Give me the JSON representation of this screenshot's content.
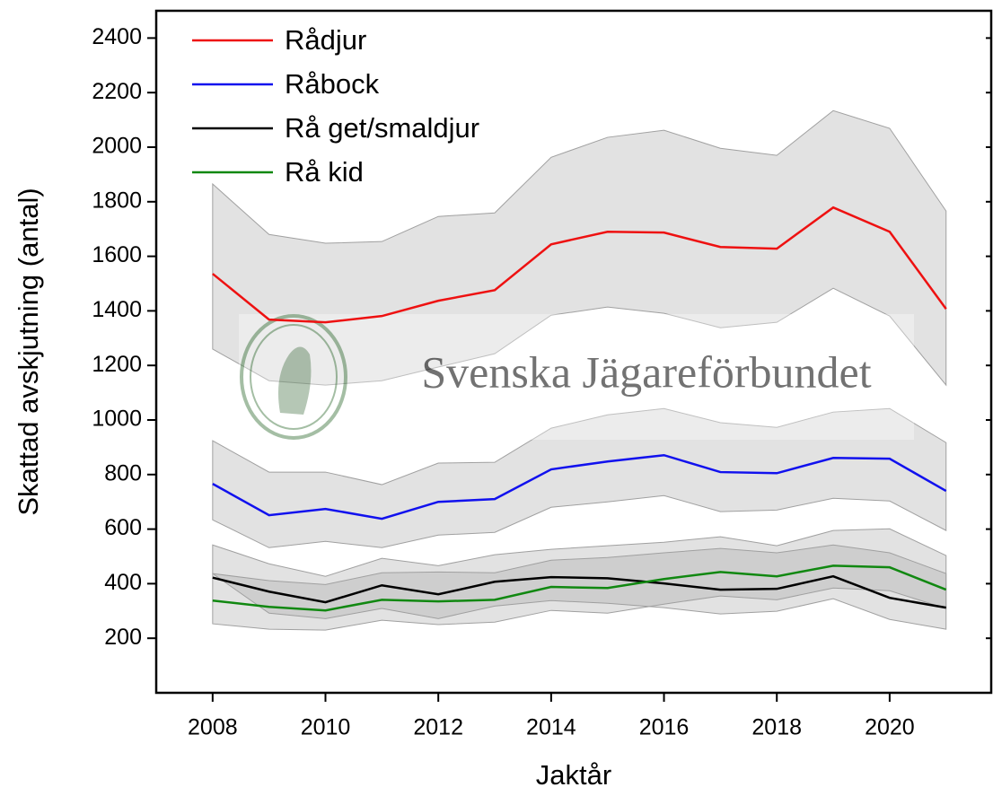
{
  "chart_data": {
    "type": "line",
    "x_label": "Jaktår",
    "y_label": "Skattad avskjutning (antal)",
    "watermark": "Svenska Jägareförbundet",
    "x": [
      2008,
      2009,
      2010,
      2011,
      2012,
      2013,
      2014,
      2015,
      2016,
      2017,
      2018,
      2019,
      2020,
      2021
    ],
    "xlim": [
      2007,
      2021.8
    ],
    "xticks": [
      2008,
      2010,
      2012,
      2014,
      2016,
      2018,
      2020
    ],
    "ylim": [
      0,
      2500
    ],
    "yticks": [
      200,
      400,
      600,
      800,
      1000,
      1200,
      1400,
      1600,
      1800,
      2000,
      2200,
      2400
    ],
    "legend": "upper-left",
    "band_color": "#a0a0a0",
    "series": [
      {
        "name": "Rådjur",
        "color": "#ee1111",
        "values": [
          1536,
          1368,
          1358,
          1381,
          1437,
          1476,
          1644,
          1690,
          1687,
          1634,
          1628,
          1779,
          1690,
          1407
        ],
        "upper": [
          1865,
          1680,
          1648,
          1654,
          1746,
          1759,
          1963,
          2036,
          2062,
          1996,
          1970,
          2134,
          2069,
          1766
        ],
        "lower": [
          1260,
          1144,
          1128,
          1144,
          1194,
          1243,
          1384,
          1414,
          1391,
          1338,
          1358,
          1483,
          1381,
          1128
        ]
      },
      {
        "name": "Råbock",
        "color": "#1111ee",
        "values": [
          766,
          651,
          674,
          638,
          700,
          710,
          819,
          848,
          871,
          809,
          805,
          861,
          858,
          740
        ],
        "upper": [
          924,
          809,
          809,
          763,
          842,
          845,
          970,
          1019,
          1042,
          990,
          973,
          1029,
          1042,
          917
        ],
        "lower": [
          634,
          532,
          555,
          532,
          578,
          588,
          680,
          700,
          723,
          664,
          670,
          713,
          703,
          595
        ]
      },
      {
        "name": "Rå get/smaldjur",
        "color": "#000000",
        "values": [
          422,
          371,
          332,
          394,
          361,
          407,
          424,
          420,
          401,
          378,
          381,
          427,
          348,
          312
        ],
        "upper": [
          542,
          473,
          427,
          493,
          466,
          506,
          526,
          539,
          552,
          572,
          539,
          595,
          601,
          503
        ],
        "lower": [
          437,
          292,
          272,
          309,
          272,
          318,
          338,
          328,
          312,
          289,
          299,
          345,
          269,
          233
        ]
      },
      {
        "name": "Rå kid",
        "color": "#118811",
        "values": [
          338,
          315,
          302,
          341,
          335,
          341,
          388,
          384,
          417,
          443,
          427,
          466,
          460,
          378
        ],
        "upper": [
          437,
          411,
          397,
          440,
          443,
          440,
          486,
          496,
          513,
          529,
          513,
          542,
          513,
          437
        ],
        "lower": [
          253,
          233,
          230,
          266,
          250,
          259,
          302,
          292,
          325,
          355,
          341,
          384,
          374,
          309
        ]
      }
    ]
  }
}
